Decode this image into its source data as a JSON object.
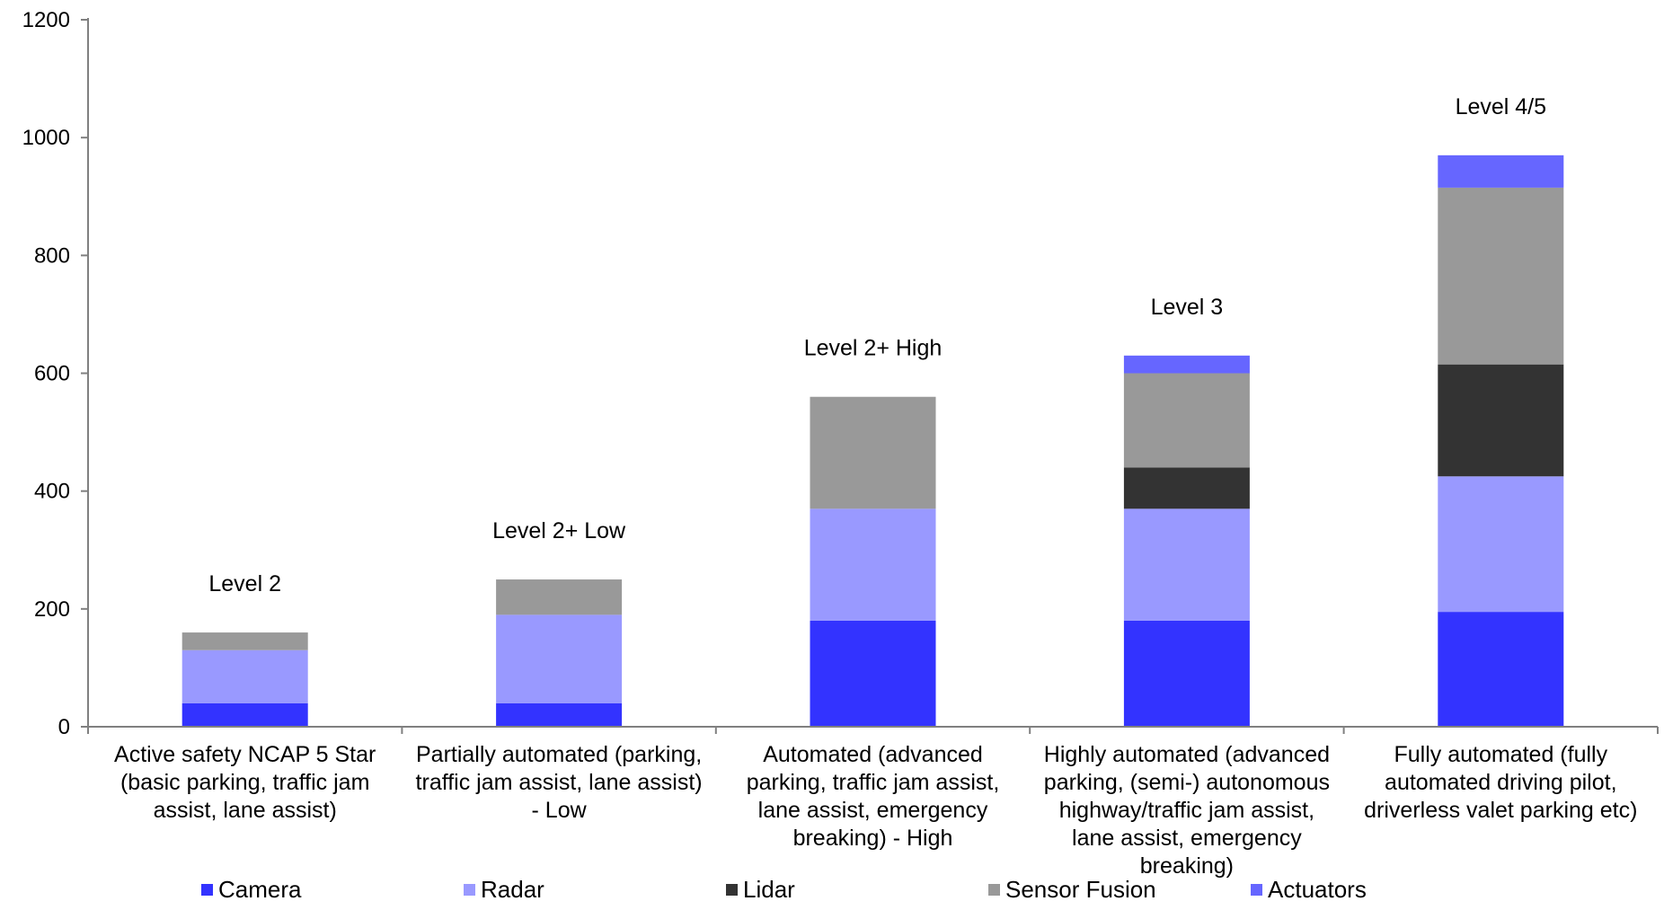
{
  "chart_data": {
    "type": "bar",
    "stacked": true,
    "categories": [
      [
        "Active safety NCAP 5 Star",
        "(basic parking, traffic jam",
        "assist, lane assist)"
      ],
      [
        "Partially automated (parking,",
        "traffic jam assist, lane assist)",
        "- Low"
      ],
      [
        "Automated (advanced",
        "parking, traffic jam assist,",
        "lane assist, emergency",
        "breaking) - High"
      ],
      [
        "Highly automated (advanced",
        "parking, (semi-) autonomous",
        "highway/traffic jam assist,",
        "lane assist, emergency",
        "breaking)"
      ],
      [
        "Fully automated (fully",
        "automated driving pilot,",
        "driverless valet parking etc)"
      ]
    ],
    "annotations": [
      "Level 2",
      "Level 2+ Low",
      "Level 2+ High",
      "Level 3",
      "Level 4/5"
    ],
    "series": [
      {
        "name": "Camera",
        "color": "#3333ff",
        "values": [
          40,
          40,
          180,
          180,
          195
        ]
      },
      {
        "name": "Radar",
        "color": "#9999ff",
        "values": [
          90,
          150,
          190,
          190,
          230
        ]
      },
      {
        "name": "Lidar",
        "color": "#333333",
        "values": [
          0,
          0,
          0,
          70,
          190
        ]
      },
      {
        "name": "Sensor Fusion",
        "color": "#999999",
        "values": [
          30,
          60,
          190,
          160,
          300
        ]
      },
      {
        "name": "Actuators",
        "color": "#6666ff",
        "values": [
          0,
          0,
          0,
          30,
          55
        ]
      }
    ],
    "yticks": [
      0,
      200,
      400,
      600,
      800,
      1000,
      1200
    ],
    "ylim": [
      0,
      1200
    ],
    "title": "",
    "xlabel": "",
    "ylabel": "",
    "grid": false,
    "legend": "bottom",
    "axis_color": "#808080"
  }
}
